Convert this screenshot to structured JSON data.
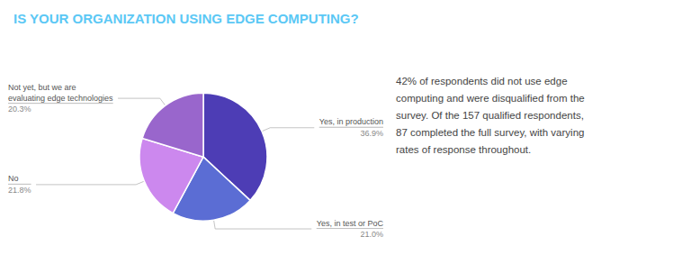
{
  "chart_data": {
    "type": "pie",
    "title": "IS YOUR ORGANIZATION USING EDGE COMPUTING?",
    "categories": [
      "Yes, in production",
      "Yes, in test or PoC",
      "No",
      "Not yet, but we are\nevaluating edge technologies"
    ],
    "values": [
      36.9,
      21.0,
      21.8,
      20.3
    ],
    "value_labels": [
      "36.9%",
      "21.0%",
      "21.8%",
      "20.3%"
    ],
    "colors": [
      "#4d3db5",
      "#5b6dd4",
      "#cc88ee",
      "#9966cc"
    ],
    "annotation": "42% of respondents did not use edge\ncomputing and were disqualified from the\nsurvey. Of the 157 qualified respondents,\n87 completed the full survey, with varying\nrates of response throughout."
  }
}
